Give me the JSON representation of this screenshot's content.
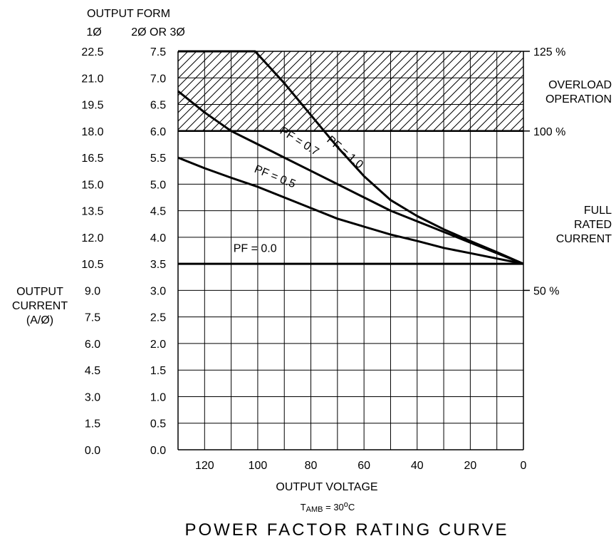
{
  "chart_data": {
    "type": "line",
    "title": "POWER FACTOR RATING CURVE",
    "subtitle": {
      "prefix": "T",
      "sub": "AMB",
      "eq": " =  30",
      "sup": "o",
      "unit": "C"
    },
    "xlabel": "OUTPUT VOLTAGE",
    "ylabel": [
      "OUTPUT",
      "CURRENT",
      "(A/Ø)"
    ],
    "output_form_label": "OUTPUT  FORM",
    "axis_headers": {
      "single_phase": "1Ø",
      "multi_phase": "2Ø  OR  3Ø"
    },
    "xlim": [
      130,
      0
    ],
    "ylim": [
      0,
      7.5
    ],
    "x_ticks": [
      120,
      100,
      80,
      60,
      40,
      20,
      0
    ],
    "y_ticks_multi_phase": [
      "0.0",
      "0.5",
      "1.0",
      "1.5",
      "2.0",
      "2.5",
      "3.0",
      "3.5",
      "4.0",
      "4.5",
      "5.0",
      "5.5",
      "6.0",
      "6.5",
      "7.0",
      "7.5"
    ],
    "y_ticks_single_phase": [
      "0.0",
      "1.5",
      "3.0",
      "4.5",
      "6.0",
      "7.5",
      "9.0",
      "10.5",
      "12.0",
      "13.5",
      "15.0",
      "16.5",
      "18.0",
      "19.5",
      "21.0",
      "22.5"
    ],
    "right_axis": [
      {
        "label": "125  %",
        "y": 7.5
      },
      {
        "label": "100  %",
        "y": 6.0
      },
      {
        "label": "50  %",
        "y": 3.0
      }
    ],
    "right_notes": [
      {
        "lines": [
          "OVERLOAD",
          "OPERATION"
        ],
        "y": 6.75
      },
      {
        "lines": [
          "FULL",
          "RATED",
          "CURRENT"
        ],
        "y": 4.25
      }
    ],
    "overload_region": {
      "y_from": 6.0,
      "y_to": 7.5
    },
    "grid": true,
    "series": [
      {
        "name": "PF  =  1.0",
        "x": [
          130,
          101,
          90,
          80,
          70,
          60,
          50,
          40,
          30,
          20,
          10,
          0
        ],
        "y": [
          7.5,
          7.5,
          6.9,
          6.3,
          5.7,
          5.15,
          4.7,
          4.4,
          4.15,
          3.93,
          3.72,
          3.5
        ]
      },
      {
        "name": "PF  =  0.7",
        "x": [
          130,
          120,
          110,
          100,
          90,
          80,
          70,
          60,
          50,
          40,
          30,
          20,
          10,
          0
        ],
        "y": [
          6.75,
          6.35,
          6.0,
          5.75,
          5.5,
          5.25,
          5.0,
          4.75,
          4.5,
          4.3,
          4.1,
          3.9,
          3.7,
          3.5
        ]
      },
      {
        "name": "PF  =  0.5",
        "x": [
          130,
          120,
          110,
          100,
          90,
          80,
          70,
          60,
          50,
          40,
          30,
          20,
          10,
          0
        ],
        "y": [
          5.5,
          5.3,
          5.12,
          4.95,
          4.75,
          4.55,
          4.35,
          4.2,
          4.05,
          3.93,
          3.8,
          3.7,
          3.6,
          3.5
        ]
      },
      {
        "name": "PF  =  0.0",
        "x": [
          130,
          0
        ],
        "y": [
          3.5,
          3.5
        ]
      }
    ],
    "series_labels": [
      {
        "text": "PF  =  1.0",
        "x": 68,
        "y": 5.55,
        "angle": 40
      },
      {
        "text": "PF  =  0.7",
        "x": 85,
        "y": 5.75,
        "angle": 32
      },
      {
        "text": "PF  =  0.5",
        "x": 94,
        "y": 5.08,
        "angle": 22
      },
      {
        "text": "PF  =  0.0",
        "x": 101,
        "y": 3.72,
        "angle": 0
      }
    ]
  }
}
